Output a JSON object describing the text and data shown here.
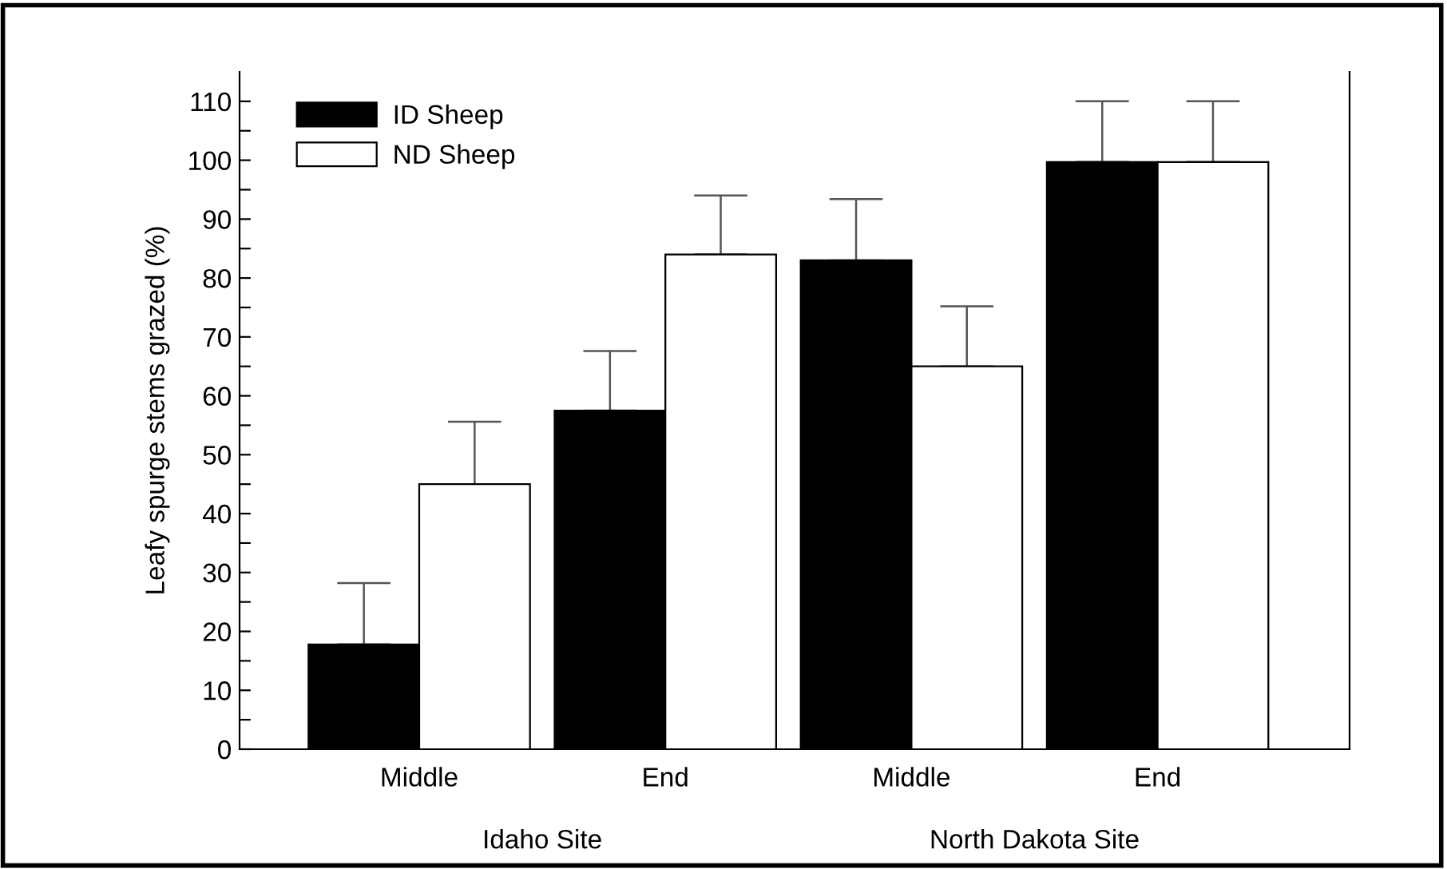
{
  "chart_data": {
    "type": "bar",
    "ylabel": "Leafy spurge stems grazed (%)",
    "categories": [
      "Middle",
      "End",
      "Middle",
      "End"
    ],
    "series": [
      {
        "name": "ID Sheep",
        "color": "#000000",
        "values": [
          17.8,
          57.5,
          83,
          99.7
        ],
        "errors": [
          [
            17.8,
            28.2
          ],
          [
            57.5,
            67.6
          ],
          [
            83,
            93.4
          ],
          [
            99.7,
            110
          ]
        ]
      },
      {
        "name": "ND Sheep",
        "color": "#ffffff",
        "values": [
          45,
          84,
          65,
          99.7
        ],
        "errors": [
          [
            45,
            55.6
          ],
          [
            84,
            94
          ],
          [
            65,
            75.2
          ],
          [
            99.7,
            110
          ]
        ]
      }
    ],
    "annotations": [
      "Idaho Site",
      "North Dakota Site"
    ],
    "ylim": [
      0,
      115
    ],
    "yticks": [
      0,
      {
        "value": 5,
        "label": null
      },
      10,
      {
        "value": 15,
        "label": null
      },
      20,
      {
        "value": 25,
        "label": null
      },
      30,
      {
        "value": 35,
        "label": null
      },
      40,
      {
        "value": 45,
        "label": null
      },
      50,
      {
        "value": 55,
        "label": null
      },
      60,
      {
        "value": 65,
        "label": null
      },
      70,
      {
        "value": 75,
        "label": null
      },
      80,
      {
        "value": 85,
        "label": null
      },
      90,
      {
        "value": 95,
        "label": null
      },
      100,
      {
        "value": 105,
        "label": null
      },
      110
    ],
    "legend": "top left",
    "grid": false
  }
}
